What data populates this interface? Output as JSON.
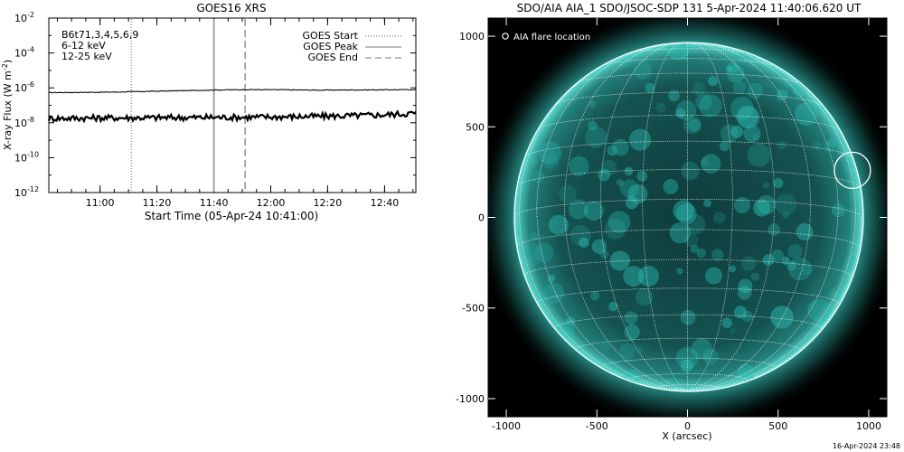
{
  "chart_data": [
    {
      "type": "line",
      "title": "GOES16 XRS",
      "xlabel": "Start Time (05-Apr-24 10:41:00)",
      "ylabel_main": "X-ray Flux (W m",
      "ylabel_sup": "-2",
      "ylabel_close": ")",
      "x_range_minutes": [
        10.7,
        12.85
      ],
      "x_tick_minutes": [
        11.0,
        11.333,
        11.667,
        12.0,
        12.333,
        12.667
      ],
      "x_tick_labels": [
        "11:00",
        "11:20",
        "11:40",
        "12:00",
        "12:20",
        "12:40"
      ],
      "y_log_range": [
        -12,
        -2
      ],
      "y_tick_exponents": [
        -12,
        -10,
        -8,
        -6,
        -4,
        -2
      ],
      "y_tick_base": "10",
      "y_tick_sups": [
        "-12",
        "-10",
        "-8",
        "-6",
        "-4",
        "-2"
      ],
      "legend_left": [
        {
          "label": "B6t71,3,4,5,6,9",
          "color": "#000000"
        },
        {
          "label": "6-12 keV",
          "color": "#e000e0"
        },
        {
          "label": "12-25 keV",
          "color": "#00cc00"
        }
      ],
      "legend_right": [
        {
          "label": "GOES Start",
          "style": "dotted"
        },
        {
          "label": "GOES Peak",
          "style": "solid"
        },
        {
          "label": "GOES End",
          "style": "dashed"
        }
      ],
      "markers": {
        "start": 11.183,
        "peak": 11.667,
        "end": 11.85
      },
      "series": [
        {
          "band": "long",
          "log_flux": [
            -6.27,
            -6.26,
            -6.24,
            -6.2,
            -6.16,
            -6.12,
            -6.1,
            -6.11,
            -6.13,
            -6.12,
            -6.11,
            -6.1
          ]
        },
        {
          "band": "short",
          "log_flux": [
            -7.75,
            -7.73,
            -7.72,
            -7.71,
            -7.7,
            -7.69,
            -7.68,
            -7.66,
            -7.63,
            -7.6,
            -7.55,
            -7.45
          ]
        }
      ]
    },
    {
      "type": "image",
      "title": "SDO/AIA AIA_1 SDO/JSOC-SDP 131  5-Apr-2024 11:40:06.620 UT",
      "xlabel": "X (arcsec)",
      "x_ticks": [
        -1000,
        -500,
        0,
        500,
        1000
      ],
      "y_ticks": [
        1000,
        500,
        0,
        -500,
        -1000
      ],
      "x_tick_labels": [
        "-1000",
        "-500",
        "0",
        "500",
        "1000"
      ],
      "y_tick_labels": [
        "1000",
        "500",
        "0",
        "-500",
        "-1000"
      ],
      "range_arcsec": [
        -1100,
        1100
      ],
      "legend": "AIA flare location",
      "flare_location_arcsec": [
        910,
        260
      ],
      "solar_radius_arcsec": 960,
      "image_color": "#2bbcb0"
    }
  ],
  "footer": {
    "timestamp": "16-Apr-2024 23:48"
  }
}
